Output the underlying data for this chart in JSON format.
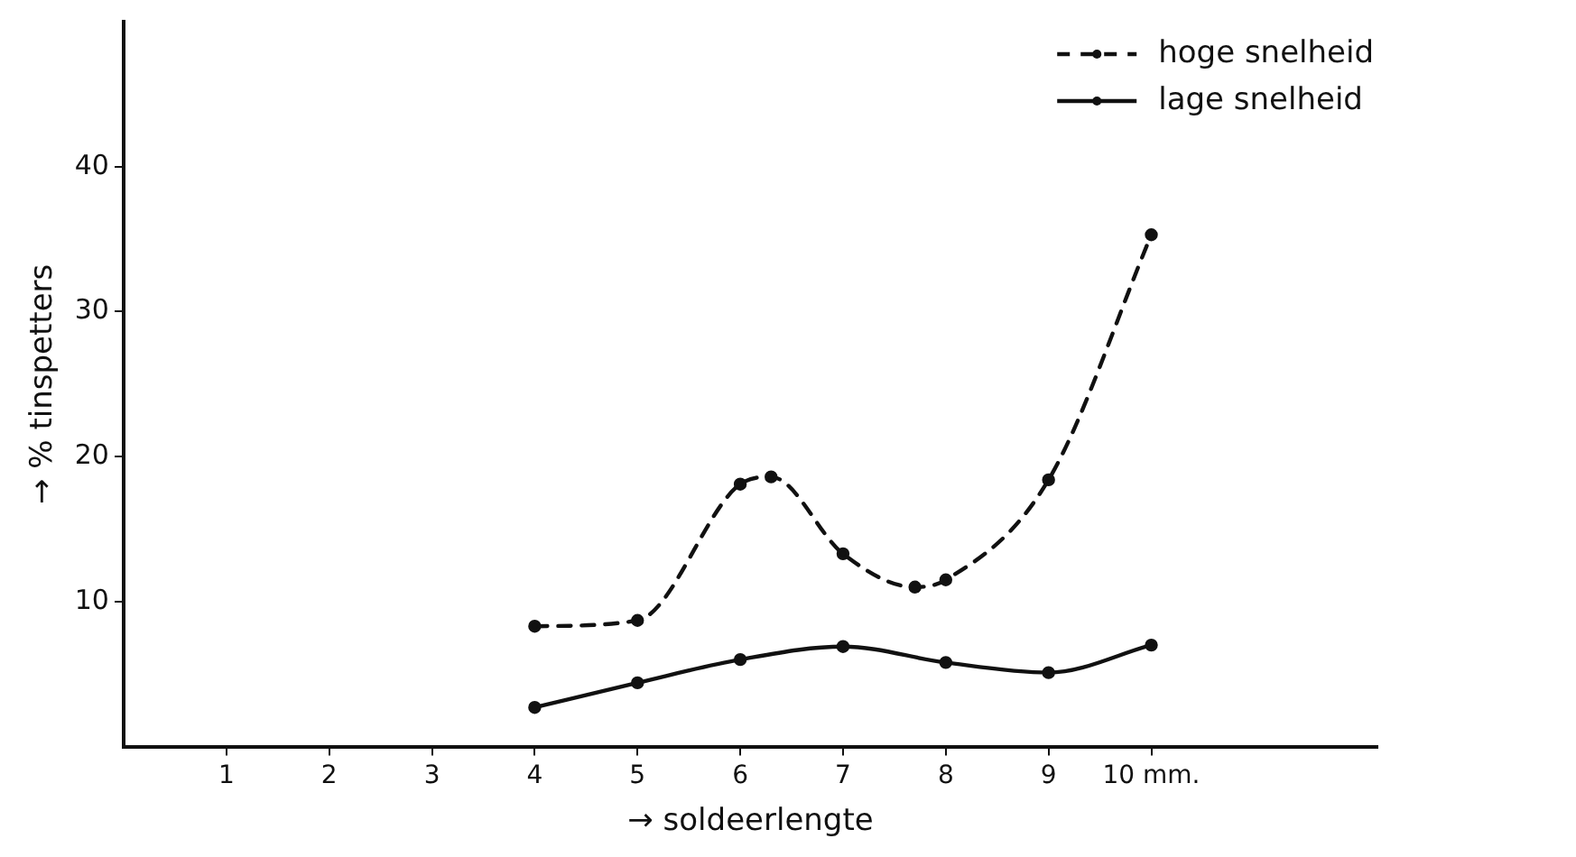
{
  "chart_data": {
    "type": "line",
    "xlabel": "→ soldeerlengte",
    "ylabel": "→ % tinspetters",
    "xlim": [
      0,
      12.2
    ],
    "ylim": [
      0,
      50
    ],
    "xticks": [
      1,
      2,
      3,
      4,
      5,
      6,
      7,
      8,
      9,
      {
        "value": 10,
        "label": "10 mm."
      }
    ],
    "yticks": [
      10,
      20,
      30,
      40
    ],
    "grid": false,
    "legend": "top right",
    "marker": "circle",
    "series": [
      {
        "name": "hoge snelheid",
        "color": "#111111",
        "line_style": "dashed",
        "x": [
          4,
          5,
          6,
          6.3,
          7,
          7.7,
          8,
          9,
          10
        ],
        "values": [
          8.3,
          8.7,
          18.1,
          18.6,
          13.3,
          11.0,
          11.5,
          18.4,
          35.3
        ]
      },
      {
        "name": "lage snelheid",
        "color": "#111111",
        "line_style": "solid",
        "x": [
          4,
          5,
          6,
          7,
          8,
          9,
          10
        ],
        "values": [
          2.7,
          4.4,
          6.0,
          6.9,
          5.8,
          5.1,
          7.0
        ]
      }
    ]
  }
}
